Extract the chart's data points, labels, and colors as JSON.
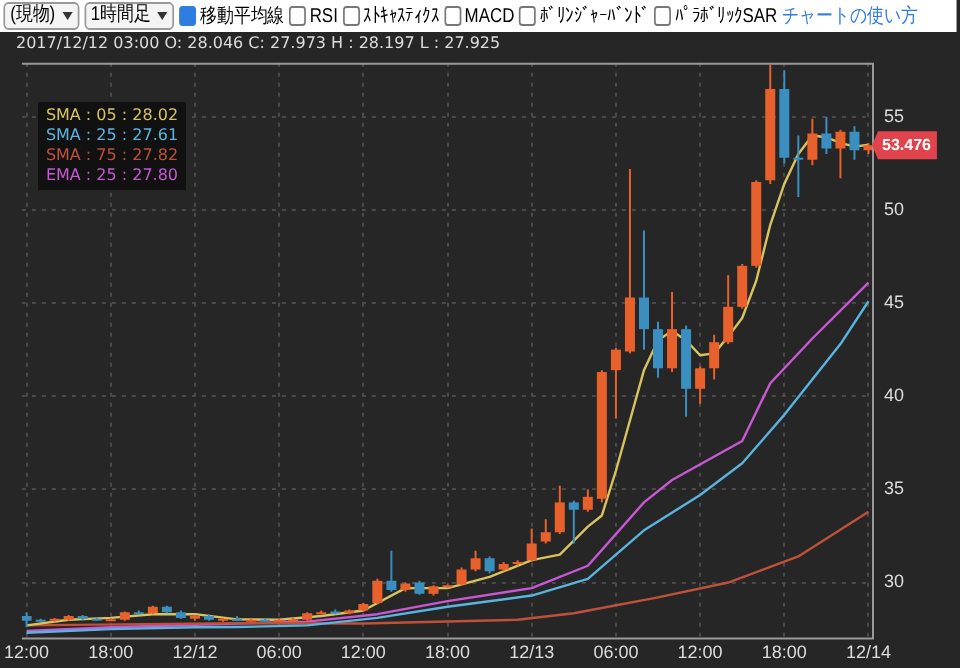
{
  "chart_data": {
    "type": "candlestick",
    "x": [
      "2017-12-11T12:00",
      "2017-12-11T13:00",
      "2017-12-11T14:00",
      "2017-12-11T15:00",
      "2017-12-11T16:00",
      "2017-12-11T17:00",
      "2017-12-11T18:00",
      "2017-12-11T19:00",
      "2017-12-11T20:00",
      "2017-12-11T21:00",
      "2017-12-11T22:00",
      "2017-12-11T23:00",
      "2017-12-12T00:00",
      "2017-12-12T01:00",
      "2017-12-12T02:00",
      "2017-12-12T03:00",
      "2017-12-12T04:00",
      "2017-12-12T05:00",
      "2017-12-12T06:00",
      "2017-12-12T07:00",
      "2017-12-12T08:00",
      "2017-12-12T09:00",
      "2017-12-12T10:00",
      "2017-12-12T11:00",
      "2017-12-12T12:00",
      "2017-12-12T13:00",
      "2017-12-12T14:00",
      "2017-12-12T15:00",
      "2017-12-12T16:00",
      "2017-12-12T17:00",
      "2017-12-12T18:00",
      "2017-12-12T19:00",
      "2017-12-12T20:00",
      "2017-12-12T21:00",
      "2017-12-12T22:00",
      "2017-12-12T23:00",
      "2017-12-13T00:00",
      "2017-12-13T01:00",
      "2017-12-13T02:00",
      "2017-12-13T03:00",
      "2017-12-13T04:00",
      "2017-12-13T05:00",
      "2017-12-13T06:00",
      "2017-12-13T07:00",
      "2017-12-13T08:00",
      "2017-12-13T09:00",
      "2017-12-13T10:00",
      "2017-12-13T11:00",
      "2017-12-13T12:00",
      "2017-12-13T13:00",
      "2017-12-13T14:00",
      "2017-12-13T15:00",
      "2017-12-13T16:00",
      "2017-12-13T17:00",
      "2017-12-13T18:00",
      "2017-12-13T19:00",
      "2017-12-13T20:00",
      "2017-12-13T21:00",
      "2017-12-13T22:00",
      "2017-12-13T23:00",
      "2017-12-14T00:00"
    ],
    "ohlc": [
      [
        28.2,
        28.4,
        27.6,
        27.95
      ],
      [
        28.0,
        28.05,
        27.9,
        27.97
      ],
      [
        27.95,
        28.1,
        27.9,
        28.05
      ],
      [
        28.0,
        28.25,
        27.95,
        28.2
      ],
      [
        28.2,
        28.25,
        28.0,
        28.05
      ],
      [
        28.05,
        28.1,
        27.95,
        28.0
      ],
      [
        28.0,
        28.1,
        27.95,
        28.03
      ],
      [
        28.0,
        28.45,
        27.95,
        28.4
      ],
      [
        28.4,
        28.5,
        28.3,
        28.35
      ],
      [
        28.35,
        28.75,
        28.3,
        28.7
      ],
      [
        28.7,
        28.75,
        28.35,
        28.4
      ],
      [
        28.4,
        28.5,
        28.05,
        28.1
      ],
      [
        28.05,
        28.25,
        27.95,
        28.2
      ],
      [
        28.2,
        28.3,
        27.95,
        28.0
      ],
      [
        28.0,
        28.1,
        27.9,
        28.05
      ],
      [
        28.046,
        28.197,
        27.925,
        27.973
      ],
      [
        27.97,
        28.05,
        27.9,
        28.0
      ],
      [
        28.0,
        28.05,
        27.9,
        27.95
      ],
      [
        27.95,
        28.05,
        27.9,
        28.0
      ],
      [
        28.0,
        28.1,
        27.95,
        28.02
      ],
      [
        28.0,
        28.4,
        27.95,
        28.35
      ],
      [
        28.35,
        28.5,
        28.3,
        28.4
      ],
      [
        28.45,
        28.55,
        28.3,
        28.35
      ],
      [
        28.35,
        28.55,
        28.3,
        28.5
      ],
      [
        28.5,
        28.9,
        28.45,
        28.85
      ],
      [
        28.9,
        30.2,
        28.85,
        30.1
      ],
      [
        30.1,
        31.7,
        29.5,
        29.6
      ],
      [
        29.6,
        30.0,
        29.5,
        29.95
      ],
      [
        30.0,
        30.1,
        29.35,
        29.4
      ],
      [
        29.4,
        29.85,
        29.3,
        29.8
      ],
      [
        29.8,
        29.9,
        29.7,
        29.85
      ],
      [
        29.9,
        30.8,
        29.85,
        30.7
      ],
      [
        30.7,
        31.7,
        30.6,
        31.3
      ],
      [
        31.3,
        31.4,
        30.5,
        30.6
      ],
      [
        30.7,
        31.1,
        30.6,
        31.0
      ],
      [
        31.0,
        31.2,
        30.9,
        31.1
      ],
      [
        31.2,
        32.9,
        31.1,
        32.1
      ],
      [
        32.2,
        33.4,
        32.1,
        32.7
      ],
      [
        32.7,
        35.2,
        32.6,
        34.3
      ],
      [
        34.3,
        34.4,
        32.1,
        33.9
      ],
      [
        33.9,
        35.0,
        33.8,
        34.6
      ],
      [
        34.5,
        41.4,
        34.3,
        41.3
      ],
      [
        41.4,
        42.6,
        38.8,
        42.5
      ],
      [
        42.4,
        52.2,
        42.3,
        45.3
      ],
      [
        45.3,
        48.9,
        42.5,
        43.6
      ],
      [
        43.6,
        44.0,
        41.0,
        41.5
      ],
      [
        41.5,
        45.6,
        41.3,
        43.6
      ],
      [
        43.6,
        43.8,
        38.9,
        40.4
      ],
      [
        40.4,
        41.6,
        39.6,
        41.5
      ],
      [
        41.5,
        43.3,
        40.9,
        42.9
      ],
      [
        42.9,
        46.5,
        42.8,
        44.8
      ],
      [
        44.8,
        47.1,
        44.7,
        47.0
      ],
      [
        47.0,
        51.6,
        46.9,
        51.5
      ],
      [
        51.6,
        57.8,
        51.4,
        56.5
      ],
      [
        56.5,
        57.5,
        52.5,
        52.8
      ],
      [
        52.8,
        54.0,
        50.7,
        52.7
      ],
      [
        52.7,
        54.9,
        52.4,
        54.1
      ],
      [
        54.1,
        55.0,
        53.0,
        53.3
      ],
      [
        53.3,
        54.3,
        51.7,
        54.2
      ],
      [
        54.2,
        54.5,
        52.7,
        53.2
      ],
      [
        53.2,
        53.6,
        53.0,
        53.476
      ]
    ],
    "colors": [
      "#3a8fc0",
      "#3a8fc0",
      "#e8612c",
      "#e8612c",
      "#3a8fc0",
      "#3a8fc0",
      "#e8612c",
      "#e8612c",
      "#3a8fc0",
      "#e8612c",
      "#3a8fc0",
      "#3a8fc0",
      "#e8612c",
      "#3a8fc0",
      "#e8612c",
      "#3a8fc0",
      "#e8612c",
      "#3a8fc0",
      "#e8612c",
      "#e8612c",
      "#e8612c",
      "#e8612c",
      "#3a8fc0",
      "#e8612c",
      "#e8612c",
      "#e8612c",
      "#3a8fc0",
      "#e8612c",
      "#3a8fc0",
      "#e8612c",
      "#e8612c",
      "#e8612c",
      "#e8612c",
      "#3a8fc0",
      "#e8612c",
      "#e8612c",
      "#e8612c",
      "#e8612c",
      "#e8612c",
      "#3a8fc0",
      "#e8612c",
      "#e8612c",
      "#e8612c",
      "#e8612c",
      "#3a8fc0",
      "#3a8fc0",
      "#e8612c",
      "#3a8fc0",
      "#e8612c",
      "#e8612c",
      "#e8612c",
      "#e8612c",
      "#e8612c",
      "#e8612c",
      "#3a8fc0",
      "#3a8fc0",
      "#e8612c",
      "#3a8fc0",
      "#e8612c",
      "#3a8fc0",
      "#e8612c"
    ],
    "series": [
      {
        "type": "line",
        "name": "SMA : 05 : 28.02",
        "color": "#d8c45e",
        "x": [
          "2017-12-11T12:00",
          "2017-12-11T15:00",
          "2017-12-11T18:00",
          "2017-12-11T21:00",
          "2017-12-12T00:00",
          "2017-12-12T03:00",
          "2017-12-12T06:00",
          "2017-12-12T09:00",
          "2017-12-12T12:00",
          "2017-12-12T15:00",
          "2017-12-12T18:00",
          "2017-12-12T21:00",
          "2017-12-13T00:00",
          "2017-12-13T02:00",
          "2017-12-13T04:00",
          "2017-12-13T05:00",
          "2017-12-13T06:00",
          "2017-12-13T08:00",
          "2017-12-13T09:00",
          "2017-12-13T10:00",
          "2017-12-13T11:00",
          "2017-12-13T12:00",
          "2017-12-13T13:00",
          "2017-12-13T14:00",
          "2017-12-13T15:00",
          "2017-12-13T16:00",
          "2017-12-13T17:00",
          "2017-12-13T18:00",
          "2017-12-13T19:00",
          "2017-12-13T20:00",
          "2017-12-13T21:00",
          "2017-12-13T22:00",
          "2017-12-13T23:00",
          "2017-12-14T00:00"
        ],
        "values": [
          27.7,
          28.0,
          28.1,
          28.3,
          28.3,
          28.02,
          28.0,
          28.2,
          28.5,
          29.7,
          29.7,
          30.3,
          31.2,
          31.5,
          33.0,
          33.6,
          36.0,
          41.4,
          43.0,
          43.5,
          43.0,
          42.2,
          42.3,
          43.2,
          44.2,
          46.2,
          49.2,
          51.4,
          53.0,
          54.0,
          53.9,
          53.6,
          53.4,
          53.5
        ]
      },
      {
        "type": "line",
        "name": "SMA : 25 : 27.61",
        "color": "#5ab4e0",
        "x": [
          "2017-12-11T12:00",
          "2017-12-11T18:00",
          "2017-12-12T00:00",
          "2017-12-12T03:00",
          "2017-12-12T08:00",
          "2017-12-12T13:00",
          "2017-12-12T18:00",
          "2017-12-13T00:00",
          "2017-12-13T04:00",
          "2017-12-13T08:00",
          "2017-12-13T12:00",
          "2017-12-13T15:00",
          "2017-12-13T18:00",
          "2017-12-13T22:00",
          "2017-12-14T00:00"
        ],
        "values": [
          27.3,
          27.5,
          27.6,
          27.61,
          27.7,
          28.1,
          28.7,
          29.3,
          30.2,
          32.8,
          34.7,
          36.4,
          39.0,
          42.8,
          45.1
        ]
      },
      {
        "type": "line",
        "name": "SMA : 75 : 27.82",
        "color": "#c0503a",
        "x": [
          "2017-12-11T12:00",
          "2017-12-12T03:00",
          "2017-12-12T12:00",
          "2017-12-12T23:00",
          "2017-12-13T03:00",
          "2017-12-13T09:00",
          "2017-12-13T14:00",
          "2017-12-13T19:00",
          "2017-12-14T00:00"
        ],
        "values": [
          27.7,
          27.82,
          27.8,
          28.0,
          28.35,
          29.2,
          30.0,
          31.4,
          33.8
        ]
      },
      {
        "type": "line",
        "name": "EMA : 25 : 27.80",
        "color": "#c957d6",
        "x": [
          "2017-12-11T12:00",
          "2017-12-11T18:00",
          "2017-12-12T03:00",
          "2017-12-12T08:00",
          "2017-12-12T13:00",
          "2017-12-12T18:00",
          "2017-12-13T00:00",
          "2017-12-13T04:00",
          "2017-12-13T08:00",
          "2017-12-13T10:00",
          "2017-12-13T15:00",
          "2017-12-13T17:00",
          "2017-12-13T20:00",
          "2017-12-14T00:00"
        ],
        "values": [
          27.4,
          27.6,
          27.8,
          27.9,
          28.3,
          29.0,
          29.7,
          30.9,
          34.3,
          35.5,
          37.6,
          40.7,
          43.1,
          46.1
        ]
      }
    ],
    "xlim": [
      "2017-12-11T11:40",
      "2017-12-14T00:15"
    ],
    "xticks": [
      {
        "value": "2017-12-11T12:00",
        "label": "12:00"
      },
      {
        "value": "2017-12-11T18:00",
        "label": "18:00"
      },
      {
        "value": "2017-12-12T00:00",
        "label": "12/12"
      },
      {
        "value": "2017-12-12T06:00",
        "label": "06:00"
      },
      {
        "value": "2017-12-12T12:00",
        "label": "12:00"
      },
      {
        "value": "2017-12-12T18:00",
        "label": "18:00"
      },
      {
        "value": "2017-12-13T00:00",
        "label": "12/13"
      },
      {
        "value": "2017-12-13T06:00",
        "label": "06:00"
      },
      {
        "value": "2017-12-13T12:00",
        "label": "12:00"
      },
      {
        "value": "2017-12-13T18:00",
        "label": "18:00"
      },
      {
        "value": "2017-12-14T00:00",
        "label": "12/14"
      }
    ],
    "ylim": [
      27,
      57.9
    ],
    "yticks": [
      30,
      35,
      40,
      45,
      50,
      55
    ],
    "grid": true,
    "legend": "top left",
    "annotations": [
      "(現物)",
      "1時間足",
      "移動平均線",
      "RSI",
      "ｽﾄｷｬｽﾃｨｸｽ",
      "MACD",
      "ﾎﾞﾘﾝｼﾞｬｰﾊﾞﾝﾄﾞ",
      "ﾊﾟﾗﾎﾞﾘｯｸSAR",
      "チャートの使い方",
      "2017/12/12 03:00 O: 28.046 C: 27.973 H : 28.197 L : 27.925",
      {
        "text": "53.476",
        "x": "2017-12-14T00:00",
        "y": 53.476
      }
    ]
  }
}
